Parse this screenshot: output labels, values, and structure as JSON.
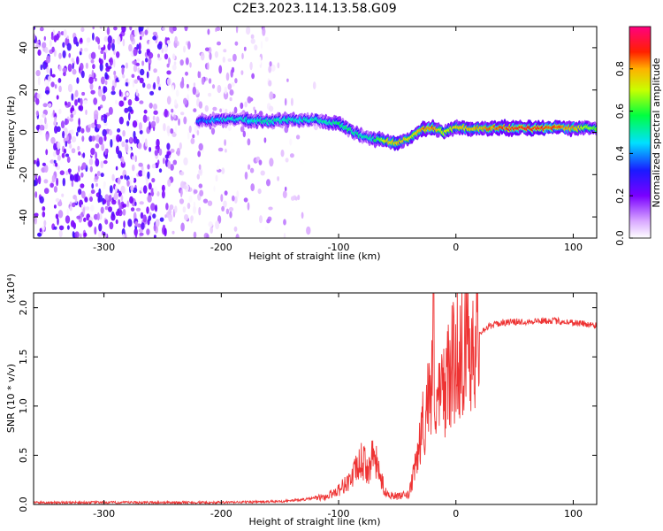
{
  "title": "C2E3.2023.114.13.58.G09",
  "chart_data": [
    {
      "type": "heatmap",
      "xlabel": "Height of straight line (km)",
      "ylabel": "Frequency (Hz)",
      "xlim": [
        -360,
        120
      ],
      "ylim": [
        -50,
        50
      ],
      "x_ticks": [
        -300,
        -200,
        -100,
        0,
        100
      ],
      "x_tick_labels": [
        "-300",
        "-200",
        "-100",
        "0",
        "100"
      ],
      "y_ticks": [
        -40,
        -20,
        0,
        20,
        40
      ],
      "y_tick_labels": [
        "-40",
        "-20",
        "0",
        "20",
        "40"
      ],
      "colorbar": {
        "label": "Normalized spectral amplitude",
        "range": [
          0,
          1
        ],
        "ticks": [
          0,
          0.2,
          0.4,
          0.6,
          0.8
        ],
        "tick_labels": [
          "0.0",
          "0.2",
          "0.4",
          "0.6",
          "0.8"
        ],
        "colormap": "rainbow (white-violet-blue-cyan-green-yellow-red-magenta)"
      },
      "noise_region_x": [
        -360,
        -150
      ],
      "ridge": {
        "x": [
          -220,
          -200,
          -180,
          -160,
          -140,
          -120,
          -100,
          -90,
          -80,
          -70,
          -60,
          -50,
          -40,
          -30,
          -20,
          -10,
          0,
          20,
          40,
          60,
          80,
          100,
          120
        ],
        "y": [
          5,
          6,
          6,
          5,
          6,
          6,
          4,
          1,
          -2,
          -3,
          -4,
          -5,
          -3,
          1,
          2,
          0,
          2,
          2,
          2,
          2,
          2,
          2,
          2
        ],
        "amplitude": [
          0.35,
          0.45,
          0.5,
          0.5,
          0.5,
          0.5,
          0.55,
          0.55,
          0.5,
          0.5,
          0.75,
          0.8,
          0.75,
          0.8,
          0.85,
          0.7,
          0.75,
          0.8,
          0.85,
          0.9,
          0.85,
          0.8,
          0.6
        ]
      }
    },
    {
      "type": "line",
      "xlabel": "Height of straight line (km)",
      "ylabel": "SNR (10 * v/v)",
      "y_multiplier": "(x10⁴)",
      "xlim": [
        -360,
        120
      ],
      "ylim": [
        0,
        2.15
      ],
      "x_ticks": [
        -300,
        -200,
        -100,
        0,
        100
      ],
      "x_tick_labels": [
        "-300",
        "-200",
        "-100",
        "0",
        "100"
      ],
      "y_ticks": [
        0,
        0.5,
        1.0,
        1.5,
        2.0
      ],
      "y_tick_labels": [
        "0.0",
        "0.5",
        "1.0",
        "1.5",
        "2.0"
      ],
      "color": "#ee3333",
      "series": [
        {
          "x": [
            -360,
            -300,
            -250,
            -200,
            -150,
            -130,
            -110,
            -100,
            -90,
            -80,
            -75,
            -70,
            -65,
            -60,
            -50,
            -40,
            -35,
            -30,
            -25,
            -22,
            -19,
            -15,
            -10,
            -5,
            0,
            10,
            20,
            30,
            40,
            60,
            80,
            100,
            120
          ],
          "y": [
            0.02,
            0.02,
            0.02,
            0.02,
            0.03,
            0.05,
            0.08,
            0.15,
            0.25,
            0.45,
            0.35,
            0.5,
            0.3,
            0.12,
            0.08,
            0.1,
            0.35,
            0.7,
            1.0,
            1.2,
            1.3,
            1.0,
            1.2,
            1.35,
            1.5,
            1.65,
            1.75,
            1.82,
            1.85,
            1.86,
            1.87,
            1.85,
            1.82
          ]
        }
      ]
    }
  ]
}
